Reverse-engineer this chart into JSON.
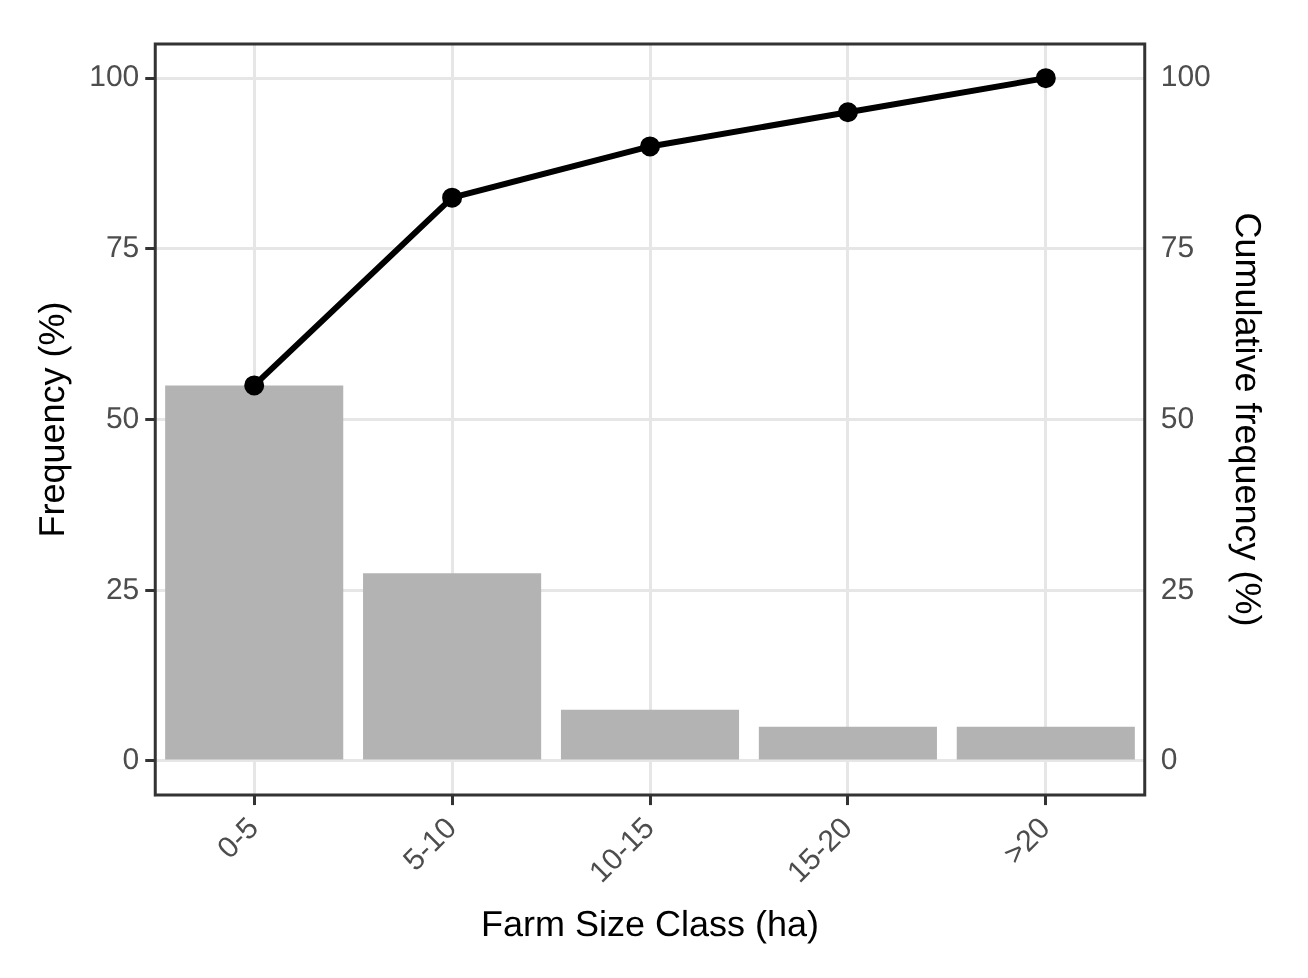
{
  "chart_data": {
    "type": "bar",
    "xlabel": "Farm Size Class (ha)",
    "ylabel": "Frequency (%)",
    "y2label": "Cumulative frequency (%)",
    "categories": [
      "0-5",
      "5-10",
      "10-15",
      "15-20",
      ">20"
    ],
    "series": [
      {
        "color": "#b3b3b3",
        "values": [
          55,
          27.5,
          7.5,
          5,
          5
        ]
      },
      {
        "type": "line",
        "axis": "y2",
        "color": "#000000",
        "marker": "circle",
        "values": [
          55,
          82.5,
          90,
          95,
          100
        ]
      }
    ],
    "ylim": [
      -5,
      105
    ],
    "yticks": [
      0,
      25,
      50,
      75,
      100
    ],
    "y2lim": [
      -5,
      105
    ],
    "y2ticks": [
      0,
      25,
      50,
      75,
      100
    ],
    "grid": true,
    "legend": false
  }
}
